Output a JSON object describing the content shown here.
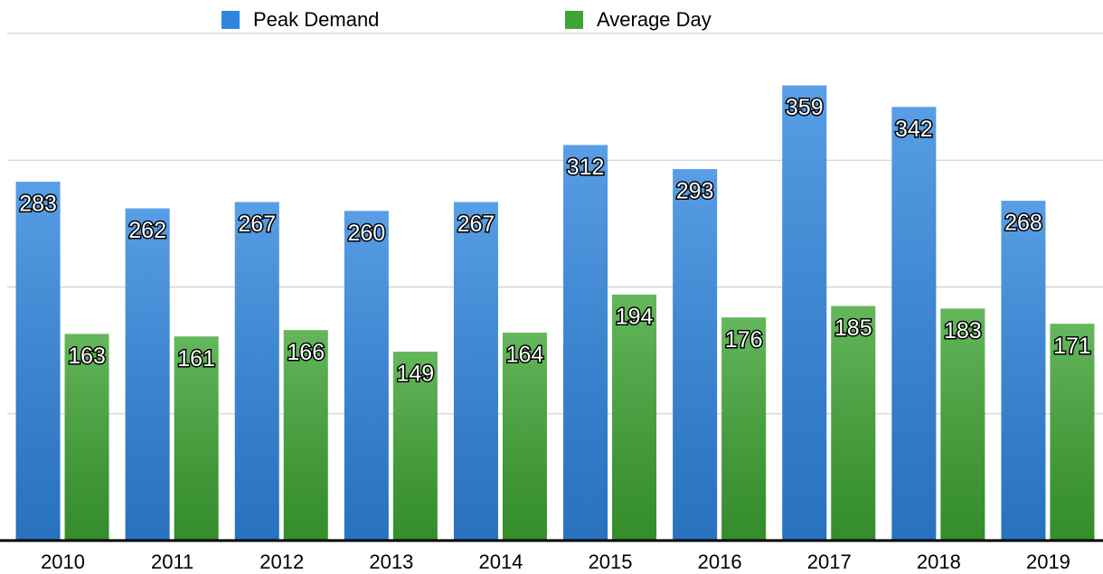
{
  "chart_data": {
    "type": "bar",
    "categories": [
      "2010",
      "2011",
      "2012",
      "2013",
      "2014",
      "2015",
      "2016",
      "2017",
      "2018",
      "2019"
    ],
    "series": [
      {
        "name": "Peak Demand",
        "color": "#2f86e0",
        "values": [
          283,
          262,
          267,
          260,
          267,
          312,
          293,
          359,
          342,
          268
        ]
      },
      {
        "name": "Average Day",
        "color": "#3ea533",
        "values": [
          163,
          161,
          166,
          149,
          164,
          194,
          176,
          185,
          183,
          171
        ]
      }
    ],
    "ylim": [
      0,
      400
    ],
    "yticks": [
      0,
      100,
      200,
      300,
      400
    ],
    "grid": true
  }
}
